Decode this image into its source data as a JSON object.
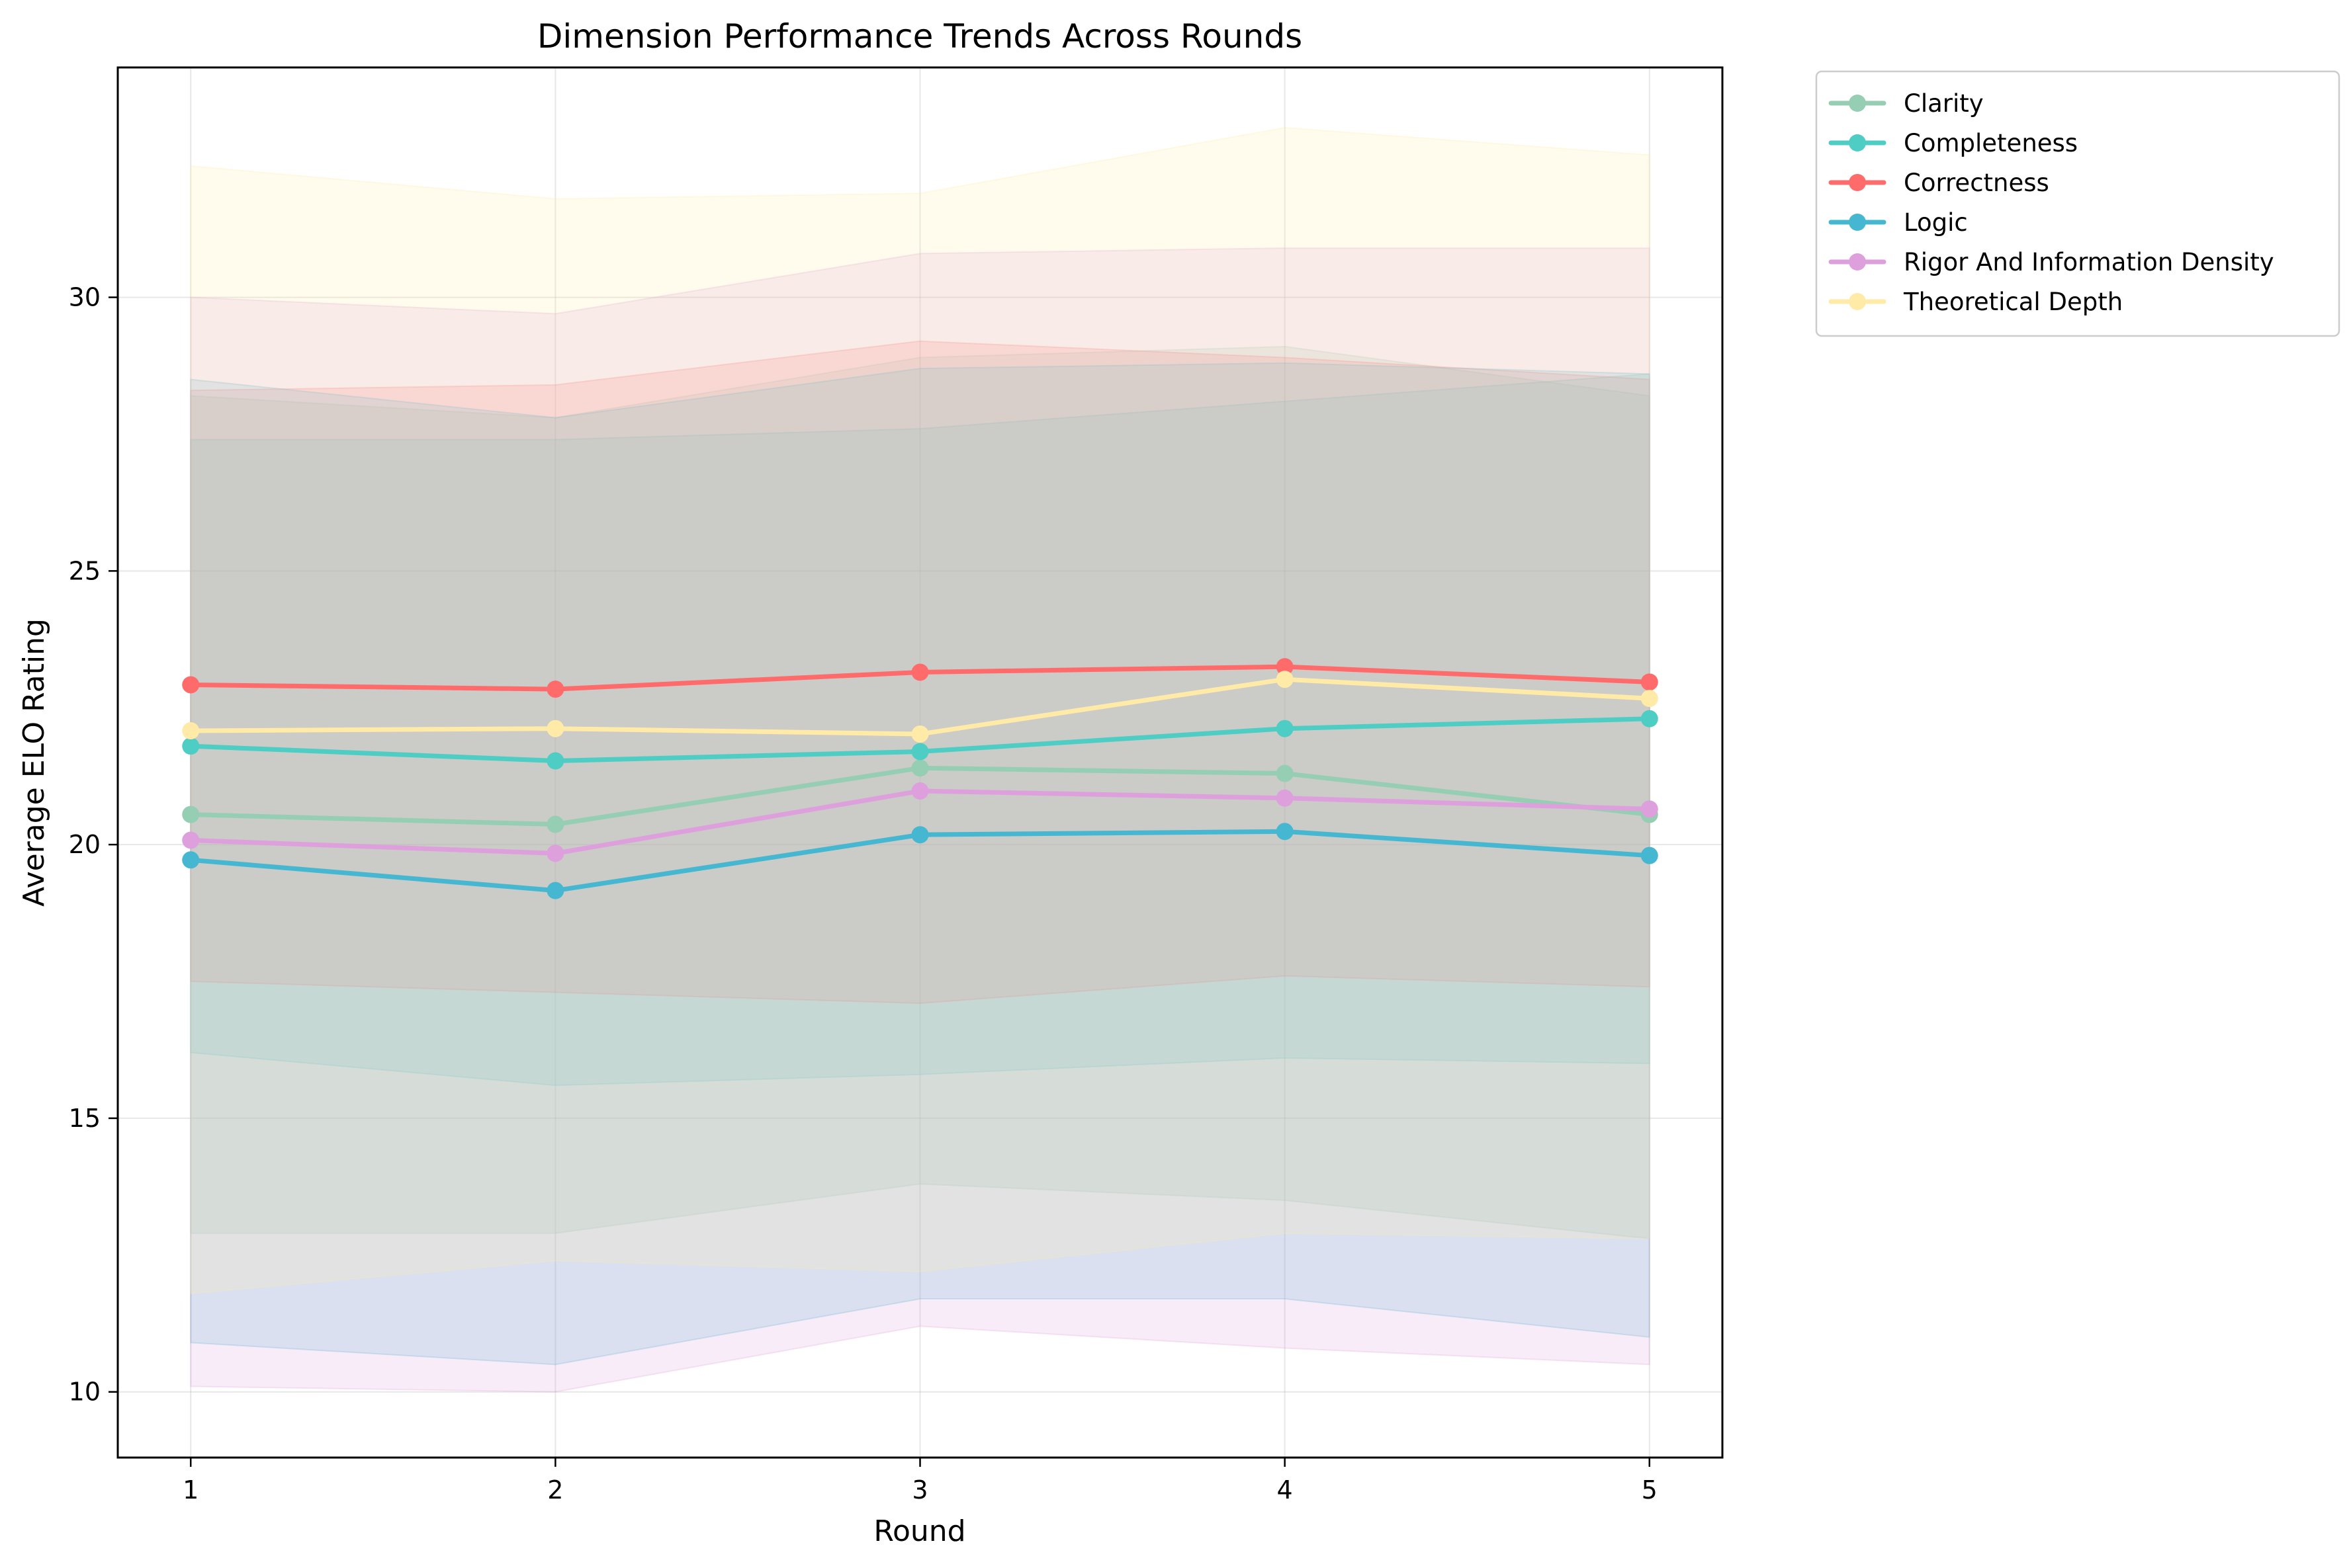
{
  "chart_data": {
    "type": "line",
    "title": "Dimension Performance Trends Across Rounds",
    "xlabel": "Round",
    "ylabel": "Average ELO Rating",
    "x": [
      1,
      2,
      3,
      4,
      5
    ],
    "xlim": [
      0.8,
      5.2
    ],
    "ylim": [
      8.8,
      34.2
    ],
    "yticks": [
      10,
      15,
      20,
      25,
      30
    ],
    "grid": true,
    "legend_position": "outside-top-right",
    "series": [
      {
        "name": "Clarity",
        "color": "#96CEB4",
        "values": [
          20.55,
          20.37,
          21.4,
          21.3,
          20.55
        ],
        "band_lower": [
          12.9,
          12.9,
          13.8,
          13.5,
          12.8
        ],
        "band_upper": [
          28.2,
          27.8,
          28.9,
          29.1,
          28.2
        ]
      },
      {
        "name": "Completeness",
        "color": "#4ECDC4",
        "values": [
          21.8,
          21.53,
          21.7,
          22.12,
          22.3
        ],
        "band_lower": [
          16.2,
          15.6,
          15.8,
          16.1,
          16.0
        ],
        "band_upper": [
          27.4,
          27.4,
          27.6,
          28.1,
          28.6
        ]
      },
      {
        "name": "Correctness",
        "color": "#FF6B6B",
        "values": [
          22.92,
          22.84,
          23.15,
          23.25,
          22.97
        ],
        "band_lower": [
          17.5,
          17.3,
          17.1,
          17.6,
          17.4
        ],
        "band_upper": [
          28.3,
          28.4,
          29.2,
          28.9,
          28.5
        ]
      },
      {
        "name": "Logic",
        "color": "#45B7D1",
        "values": [
          19.72,
          19.16,
          20.18,
          20.24,
          19.8
        ],
        "band_lower": [
          10.9,
          10.5,
          11.7,
          11.7,
          11.0
        ],
        "band_upper": [
          28.5,
          27.8,
          28.7,
          28.8,
          28.6
        ]
      },
      {
        "name": "Rigor And Information Density",
        "color": "#DDA0DD",
        "values": [
          20.08,
          19.84,
          20.98,
          20.85,
          20.65
        ],
        "band_lower": [
          10.1,
          10.0,
          11.2,
          10.8,
          10.5
        ],
        "band_upper": [
          30.0,
          29.7,
          30.8,
          30.9,
          30.9
        ]
      },
      {
        "name": "Theoretical Depth",
        "color": "#FFEAA7",
        "values": [
          22.08,
          22.12,
          22.02,
          23.02,
          22.67
        ],
        "band_lower": [
          11.8,
          12.4,
          12.2,
          12.9,
          12.8
        ],
        "band_upper": [
          32.4,
          31.8,
          31.9,
          33.1,
          32.6
        ]
      }
    ]
  }
}
